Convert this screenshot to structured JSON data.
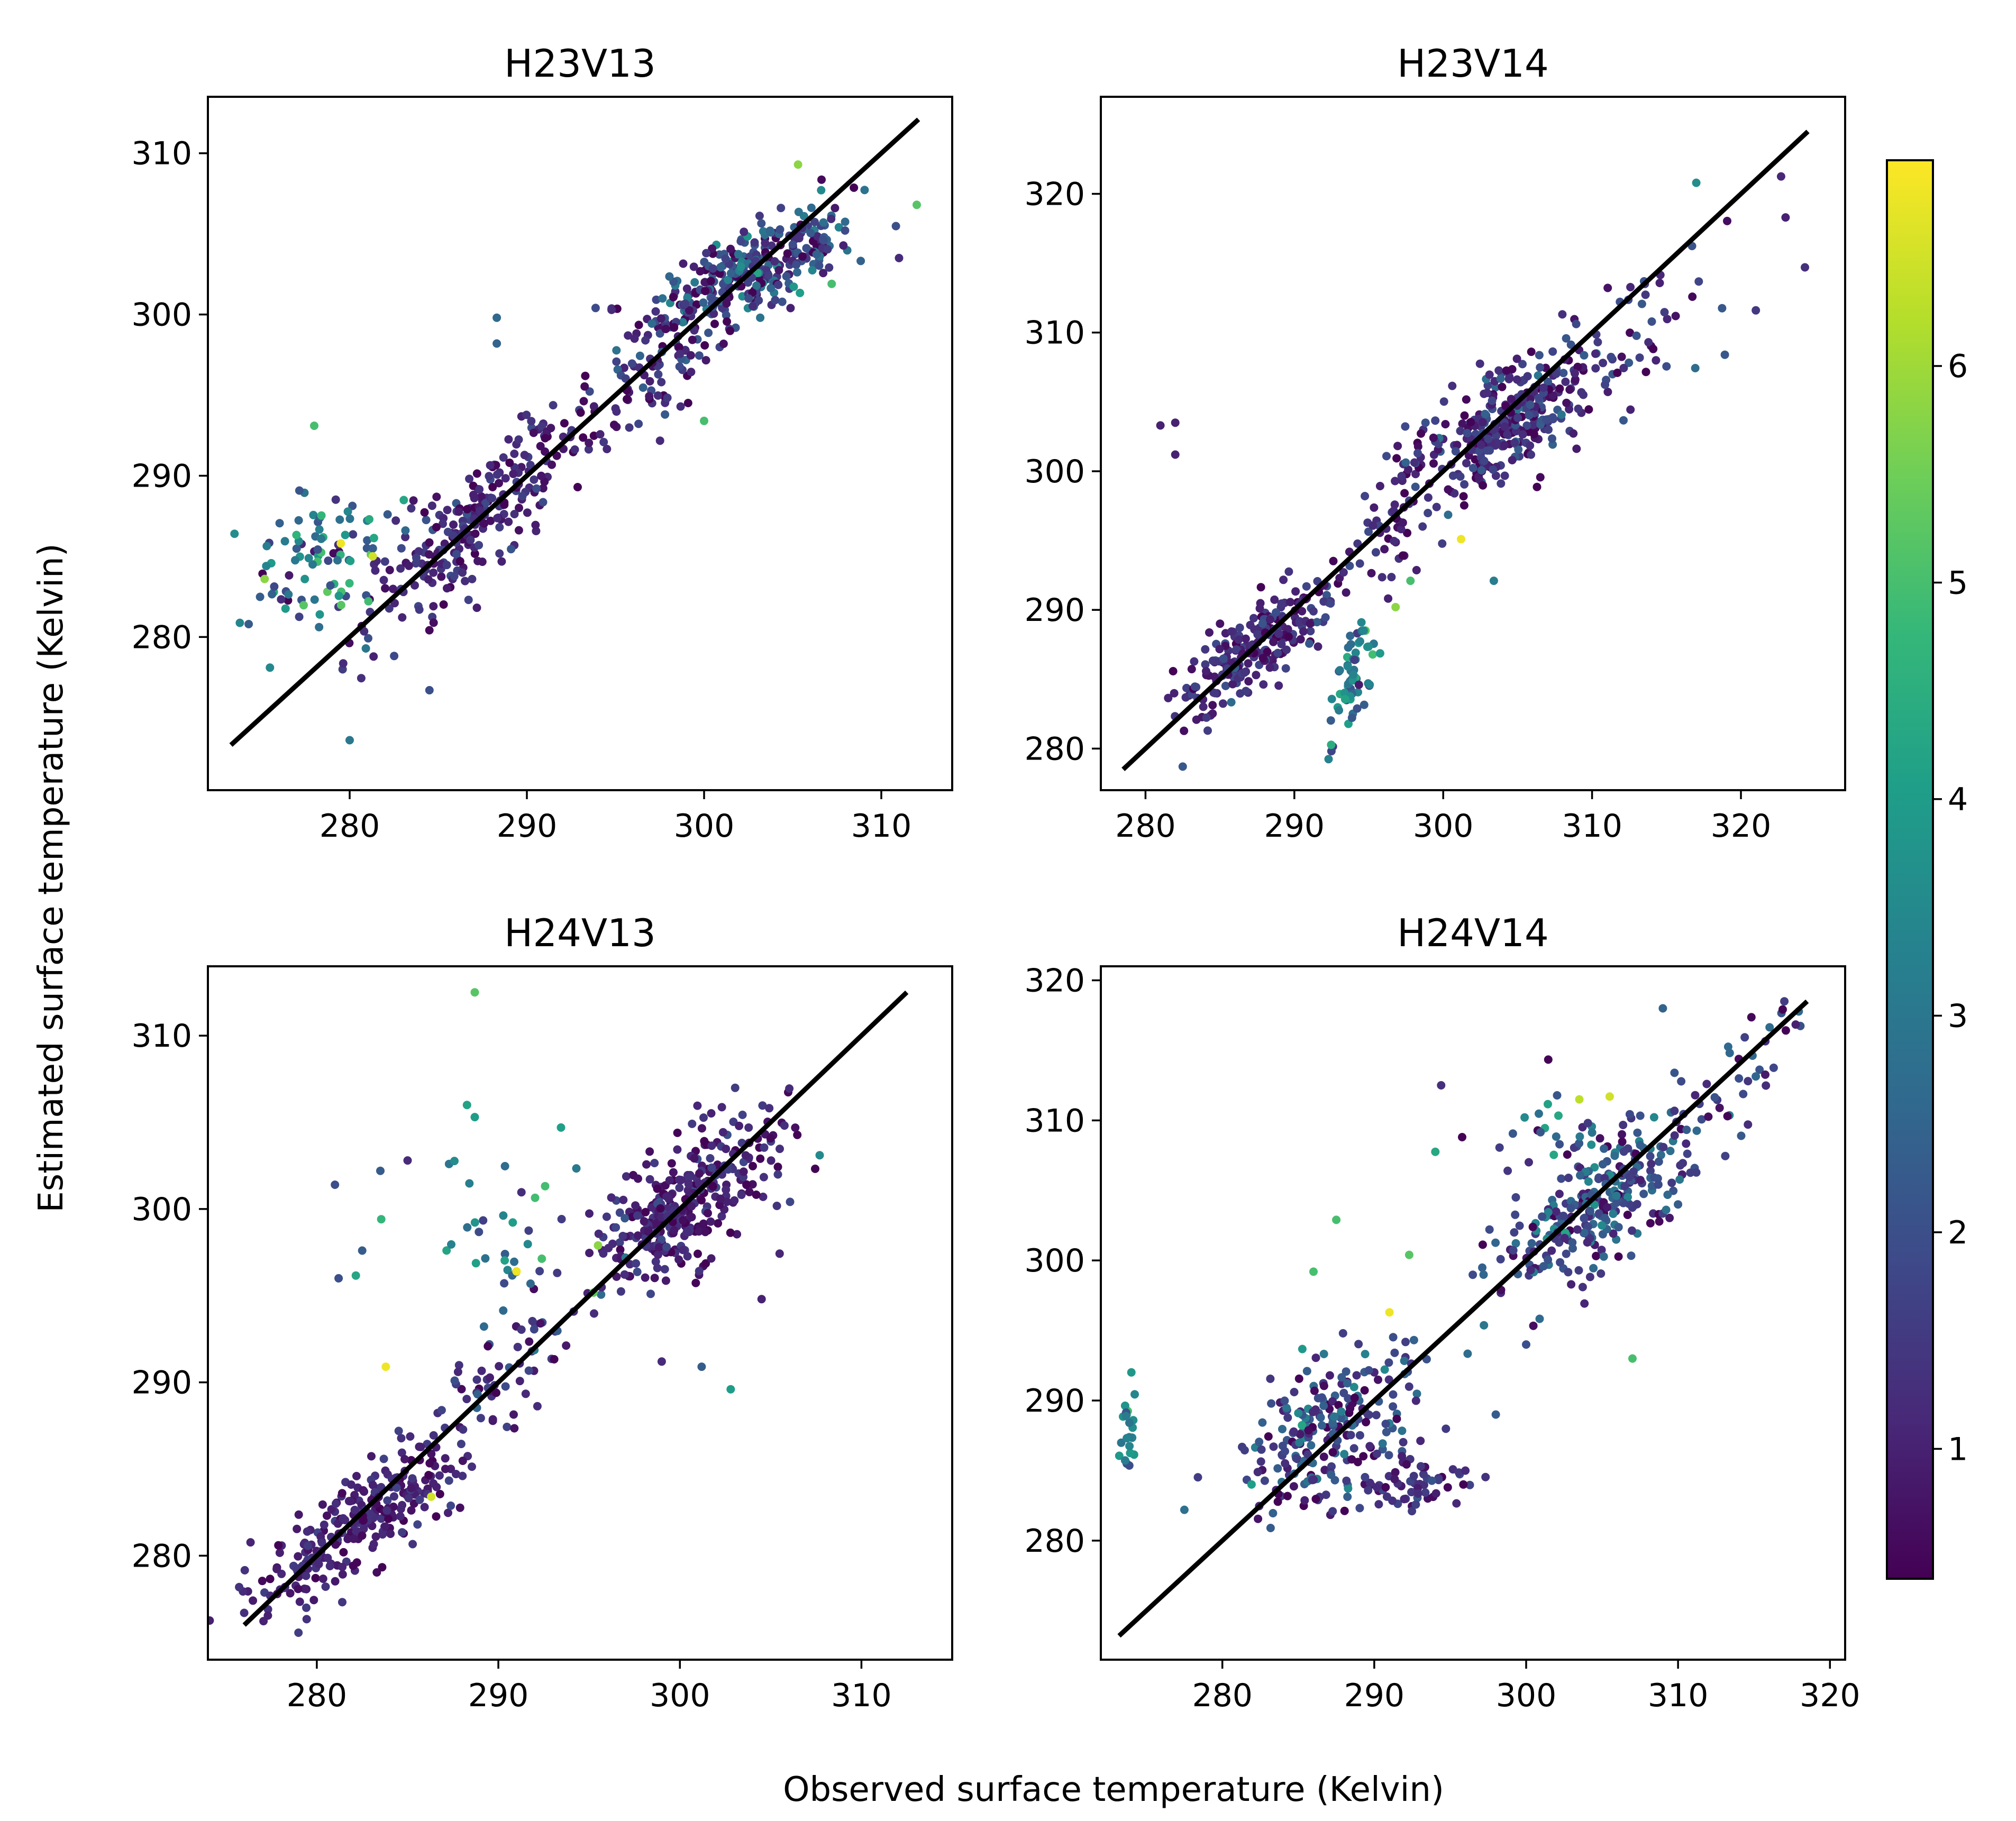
{
  "figure": {
    "xlabel": "Observed surface temperature (Kelvin)",
    "ylabel": "Estimated surface temperature (Kelvin)"
  },
  "colorbar": {
    "colormap": "viridis",
    "range": [
      0.4,
      6.95
    ],
    "ticks": [
      1,
      2,
      3,
      4,
      5,
      6
    ],
    "tick_labels": [
      "1",
      "2",
      "3",
      "4",
      "5",
      "6"
    ],
    "stops": [
      "#440154",
      "#482878",
      "#3e4989",
      "#31688e",
      "#26828e",
      "#1f9e89",
      "#35b779",
      "#6ece58",
      "#b5de2b",
      "#fde725"
    ]
  },
  "chart_data": [
    {
      "id": "H23V13",
      "type": "scatter",
      "title": "H23V13",
      "xlim": [
        272,
        314
      ],
      "ylim": [
        270.5,
        313.5
      ],
      "xticks": [
        280,
        290,
        300,
        310
      ],
      "xtick_labels": [
        "280",
        "290",
        "300",
        "310"
      ],
      "yticks": [
        280,
        290,
        300,
        310
      ],
      "ytick_labels": [
        "280",
        "290",
        "300",
        "310"
      ],
      "identity_line": [
        273.3,
        312.1
      ],
      "clusters": [
        {
          "cx": 302.5,
          "cy": 302.5,
          "sx": 3.0,
          "sy": 2.0,
          "r": 0.72,
          "n": 340,
          "cmean": 1.7,
          "csd": 1.0
        },
        {
          "cx": 297.5,
          "cy": 297.0,
          "sx": 1.8,
          "sy": 2.2,
          "r": 0.6,
          "n": 90,
          "cmean": 1.3,
          "csd": 0.6
        },
        {
          "cx": 286.5,
          "cy": 286.5,
          "sx": 2.8,
          "sy": 3.2,
          "r": 0.8,
          "n": 230,
          "cmean": 1.1,
          "csd": 0.45
        },
        {
          "cx": 278.5,
          "cy": 284.5,
          "sx": 2.2,
          "sy": 2.4,
          "r": 0.2,
          "n": 85,
          "cmean": 3.2,
          "csd": 1.3
        },
        {
          "cx": 292.0,
          "cy": 293.0,
          "sx": 1.8,
          "sy": 1.8,
          "r": 0.6,
          "n": 40,
          "cmean": 1.0,
          "csd": 0.4
        }
      ],
      "points": [
        {
          "x": 279.5,
          "y": 285.8,
          "c": 6.8
        },
        {
          "x": 281.3,
          "y": 285.0,
          "c": 6.5
        },
        {
          "x": 305.3,
          "y": 309.3,
          "c": 5.8
        },
        {
          "x": 307.2,
          "y": 301.9,
          "c": 5.0
        },
        {
          "x": 300.0,
          "y": 293.4,
          "c": 5.0
        },
        {
          "x": 275.2,
          "y": 283.6,
          "c": 5.8
        },
        {
          "x": 278.0,
          "y": 293.1,
          "c": 5.0
        },
        {
          "x": 280.0,
          "y": 273.6,
          "c": 3.0
        },
        {
          "x": 284.5,
          "y": 276.7,
          "c": 2.0
        },
        {
          "x": 312.0,
          "y": 306.8,
          "c": 5.2
        },
        {
          "x": 311.0,
          "y": 303.5,
          "c": 1.2
        },
        {
          "x": 288.3,
          "y": 299.8,
          "c": 2.6
        },
        {
          "x": 288.3,
          "y": 298.2,
          "c": 2.5
        },
        {
          "x": 273.5,
          "y": 286.4,
          "c": 3.6
        },
        {
          "x": 275.5,
          "y": 278.1,
          "c": 3.5
        },
        {
          "x": 274.3,
          "y": 280.8,
          "c": 2.3
        }
      ]
    },
    {
      "id": "H23V14",
      "type": "scatter",
      "title": "H23V14",
      "xlim": [
        277,
        327
      ],
      "ylim": [
        277,
        327
      ],
      "xticks": [
        280,
        290,
        300,
        310,
        320
      ],
      "xtick_labels": [
        "280",
        "290",
        "300",
        "310",
        "320"
      ],
      "yticks": [
        280,
        290,
        300,
        310,
        320
      ],
      "ytick_labels": [
        "280",
        "290",
        "300",
        "310",
        "320"
      ],
      "identity_line": [
        278.5,
        324.5
      ],
      "clusters": [
        {
          "cx": 304.0,
          "cy": 303.5,
          "sx": 3.2,
          "sy": 2.6,
          "r": 0.65,
          "n": 320,
          "cmean": 1.3,
          "csd": 0.65
        },
        {
          "cx": 287.5,
          "cy": 287.5,
          "sx": 2.8,
          "sy": 2.6,
          "r": 0.85,
          "n": 230,
          "cmean": 1.2,
          "csd": 0.5
        },
        {
          "cx": 294.0,
          "cy": 285.5,
          "sx": 0.9,
          "sy": 2.6,
          "r": 0.55,
          "n": 60,
          "cmean": 3.0,
          "csd": 0.8
        },
        {
          "cx": 312.0,
          "cy": 309.0,
          "sx": 4.5,
          "sy": 4.5,
          "r": 0.75,
          "n": 60,
          "cmean": 1.4,
          "csd": 0.7
        },
        {
          "cx": 296.5,
          "cy": 296.0,
          "sx": 1.8,
          "sy": 2.5,
          "r": 0.5,
          "n": 45,
          "cmean": 1.2,
          "csd": 0.5
        }
      ],
      "points": [
        {
          "x": 301.2,
          "y": 295.1,
          "c": 6.8
        },
        {
          "x": 296.8,
          "y": 290.2,
          "c": 5.8
        },
        {
          "x": 297.8,
          "y": 292.1,
          "c": 5.0
        },
        {
          "x": 317.0,
          "y": 320.8,
          "c": 3.6
        },
        {
          "x": 281.0,
          "y": 303.3,
          "c": 1.0
        },
        {
          "x": 282.0,
          "y": 303.5,
          "c": 1.0
        },
        {
          "x": 282.0,
          "y": 301.2,
          "c": 1.0
        },
        {
          "x": 282.5,
          "y": 278.7,
          "c": 2.2
        },
        {
          "x": 323.0,
          "y": 318.3,
          "c": 1.0
        },
        {
          "x": 324.3,
          "y": 314.7,
          "c": 1.3
        },
        {
          "x": 321.0,
          "y": 311.6,
          "c": 1.5
        },
        {
          "x": 303.4,
          "y": 292.1,
          "c": 3.2
        }
      ]
    },
    {
      "id": "H24V13",
      "type": "scatter",
      "title": "H24V13",
      "xlim": [
        274,
        315
      ],
      "ylim": [
        274,
        314
      ],
      "xticks": [
        280,
        290,
        300,
        310
      ],
      "xtick_labels": [
        "280",
        "290",
        "300",
        "310"
      ],
      "yticks": [
        280,
        290,
        300,
        310
      ],
      "ytick_labels": [
        "280",
        "290",
        "300",
        "310"
      ],
      "identity_line": [
        276.0,
        312.5
      ],
      "clusters": [
        {
          "cx": 300.0,
          "cy": 299.8,
          "sx": 2.3,
          "sy": 2.3,
          "r": 0.6,
          "n": 300,
          "cmean": 1.0,
          "csd": 0.45
        },
        {
          "cx": 282.5,
          "cy": 282.0,
          "sx": 3.0,
          "sy": 2.5,
          "r": 0.85,
          "n": 280,
          "cmean": 1.0,
          "csd": 0.35
        },
        {
          "cx": 290.0,
          "cy": 290.5,
          "sx": 2.2,
          "sy": 2.0,
          "r": 0.7,
          "n": 50,
          "cmean": 1.3,
          "csd": 0.6
        },
        {
          "cx": 290.5,
          "cy": 298.5,
          "sx": 2.5,
          "sy": 2.5,
          "r": 0.0,
          "n": 45,
          "cmean": 3.0,
          "csd": 1.0
        },
        {
          "cx": 304.0,
          "cy": 303.5,
          "sx": 2.0,
          "sy": 2.0,
          "r": 0.5,
          "n": 40,
          "cmean": 1.1,
          "csd": 0.4
        }
      ],
      "points": [
        {
          "x": 288.7,
          "y": 312.5,
          "c": 5.2
        },
        {
          "x": 288.7,
          "y": 305.3,
          "c": 4.0
        },
        {
          "x": 283.8,
          "y": 290.9,
          "c": 6.8
        },
        {
          "x": 291.0,
          "y": 296.4,
          "c": 6.8
        },
        {
          "x": 286.3,
          "y": 283.4,
          "c": 6.5
        },
        {
          "x": 302.8,
          "y": 289.6,
          "c": 4.0
        },
        {
          "x": 307.7,
          "y": 303.1,
          "c": 3.5
        },
        {
          "x": 281.0,
          "y": 301.4,
          "c": 2.0
        },
        {
          "x": 281.2,
          "y": 296.0,
          "c": 2.0
        },
        {
          "x": 283.5,
          "y": 302.2,
          "c": 2.3
        },
        {
          "x": 285.0,
          "y": 302.8,
          "c": 1.2
        },
        {
          "x": 282.5,
          "y": 297.6,
          "c": 2.3
        },
        {
          "x": 299.0,
          "y": 291.2,
          "c": 1.2
        },
        {
          "x": 301.2,
          "y": 290.9,
          "c": 2.3
        },
        {
          "x": 304.5,
          "y": 294.8,
          "c": 1.0
        },
        {
          "x": 276.0,
          "y": 276.7,
          "c": 1.3
        }
      ]
    },
    {
      "id": "H24V14",
      "type": "scatter",
      "title": "H24V14",
      "xlim": [
        272,
        321
      ],
      "ylim": [
        271.5,
        321
      ],
      "xticks": [
        280,
        290,
        300,
        310,
        320
      ],
      "xtick_labels": [
        "280",
        "290",
        "300",
        "310",
        "320"
      ],
      "yticks": [
        280,
        290,
        300,
        310,
        320
      ],
      "ytick_labels": [
        "280",
        "290",
        "300",
        "310",
        "320"
      ],
      "identity_line": [
        273.2,
        318.5
      ],
      "clusters": [
        {
          "cx": 305.0,
          "cy": 304.0,
          "sx": 3.2,
          "sy": 3.0,
          "r": 0.75,
          "n": 260,
          "cmean": 1.8,
          "csd": 0.9
        },
        {
          "cx": 287.0,
          "cy": 288.0,
          "sx": 2.8,
          "sy": 3.0,
          "r": 0.45,
          "n": 230,
          "cmean": 1.6,
          "csd": 0.9
        },
        {
          "cx": 292.5,
          "cy": 284.0,
          "sx": 2.0,
          "sy": 1.1,
          "r": 0.0,
          "n": 60,
          "cmean": 1.2,
          "csd": 0.5
        },
        {
          "cx": 313.0,
          "cy": 312.5,
          "sx": 3.0,
          "sy": 3.0,
          "r": 0.8,
          "n": 45,
          "cmean": 1.6,
          "csd": 0.7
        },
        {
          "cx": 302.0,
          "cy": 308.5,
          "sx": 3.0,
          "sy": 2.5,
          "r": 0.0,
          "n": 40,
          "cmean": 2.4,
          "csd": 1.0
        },
        {
          "cx": 273.8,
          "cy": 288.0,
          "sx": 0.3,
          "sy": 1.6,
          "r": 0.0,
          "n": 22,
          "cmean": 3.2,
          "csd": 0.7
        }
      ],
      "points": [
        {
          "x": 291.0,
          "y": 296.3,
          "c": 6.8
        },
        {
          "x": 303.5,
          "y": 311.5,
          "c": 6.3
        },
        {
          "x": 305.5,
          "y": 311.7,
          "c": 6.5
        },
        {
          "x": 287.5,
          "y": 302.9,
          "c": 5.0
        },
        {
          "x": 292.3,
          "y": 300.4,
          "c": 5.2
        },
        {
          "x": 307.0,
          "y": 293.0,
          "c": 5.0
        },
        {
          "x": 277.5,
          "y": 282.2,
          "c": 2.8
        },
        {
          "x": 286.0,
          "y": 299.2,
          "c": 5.0
        },
        {
          "x": 309.0,
          "y": 318.0,
          "c": 2.5
        },
        {
          "x": 317.0,
          "y": 318.5,
          "c": 1.6
        },
        {
          "x": 300.0,
          "y": 294.0,
          "c": 2.0
        },
        {
          "x": 296.0,
          "y": 285.0,
          "c": 1.2
        },
        {
          "x": 298.0,
          "y": 289.0,
          "c": 2.3
        },
        {
          "x": 310.0,
          "y": 304.0,
          "c": 2.3
        }
      ]
    }
  ]
}
